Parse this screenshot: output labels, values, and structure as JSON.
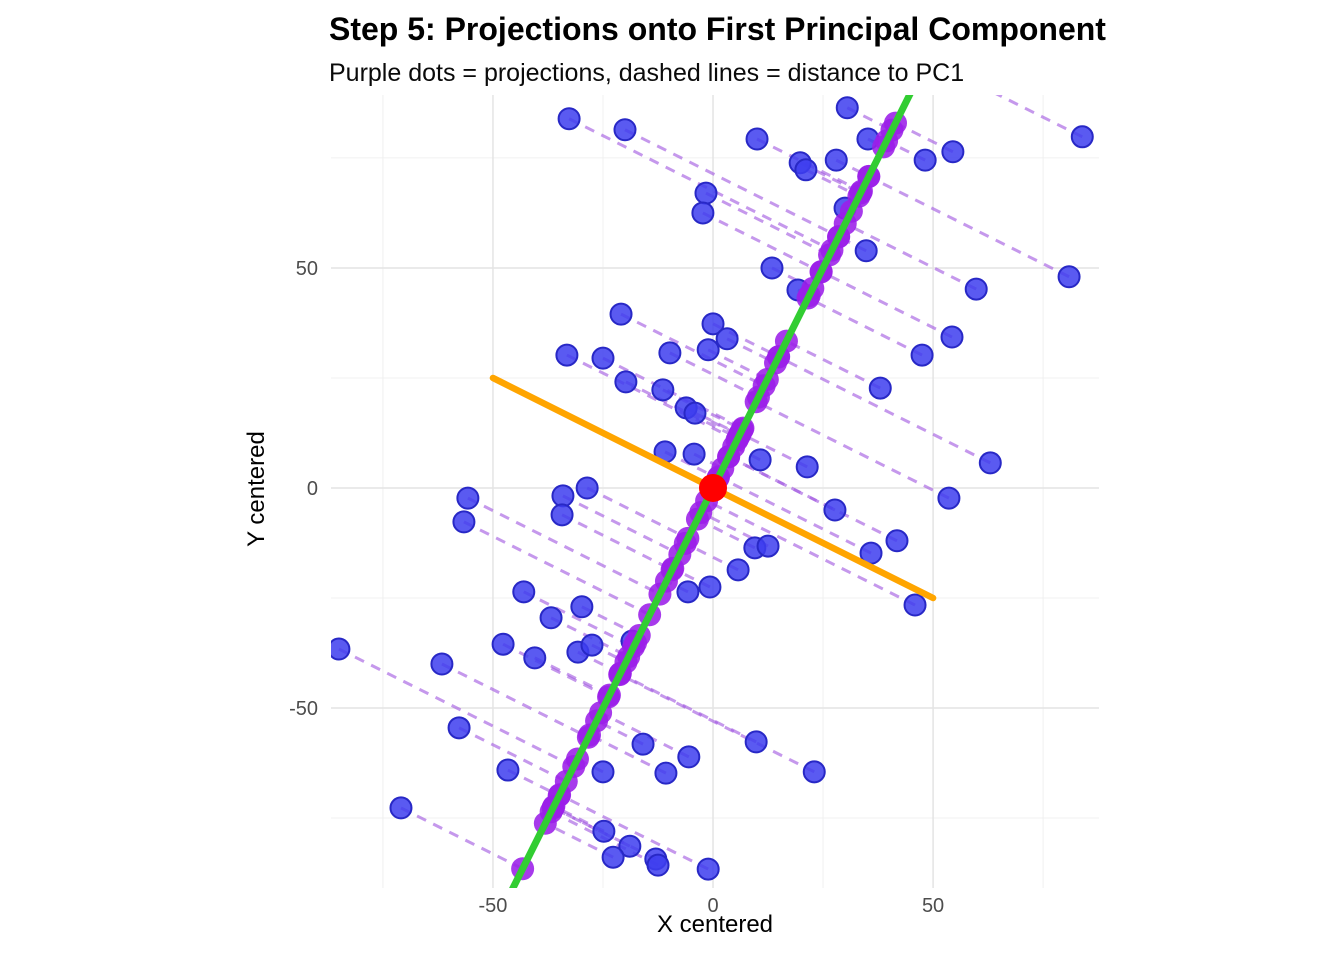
{
  "chart_data": {
    "type": "scatter",
    "title": "Step 5: Projections onto First Principal Component",
    "subtitle": "Purple dots = projections, dashed lines = distance to PC1",
    "xlabel": "X centered",
    "ylabel": "Y centered",
    "xlim": [
      -86.8,
      87.7
    ],
    "ylim": [
      -90.9,
      89.3
    ],
    "x_ticks": [
      -50,
      0,
      50
    ],
    "y_ticks": [
      -50,
      0,
      50
    ],
    "x_grid_minor": [
      -75,
      -25,
      25,
      75
    ],
    "y_grid_minor": [
      -75,
      -25,
      25,
      75
    ],
    "grid": "on",
    "legend_position": "none",
    "pc1_line": {
      "name": "PC1",
      "slope": 2.0,
      "intercept": 0,
      "t_range": [
        -105,
        105
      ]
    },
    "pc2_line": {
      "name": "PC2",
      "from": [
        -50,
        25
      ],
      "to": [
        50,
        -25
      ]
    },
    "center_point": {
      "x": 0,
      "y": 0
    },
    "projection_rule": "orthogonal projection of each point onto PC1: t=(x+2y)/5, proj=(t,2t)",
    "series": [
      {
        "name": "data-points",
        "points": [
          [
            -32.7,
            83.9
          ],
          [
            -20.0,
            81.4
          ],
          [
            -20.9,
            39.5
          ],
          [
            -33.2,
            30.2
          ],
          [
            -25.0,
            29.5
          ],
          [
            30.5,
            86.4
          ],
          [
            10.0,
            79.3
          ],
          [
            19.8,
            73.9
          ],
          [
            21.1,
            72.3
          ],
          [
            28.0,
            74.5
          ],
          [
            35.2,
            79.3
          ],
          [
            48.2,
            74.5
          ],
          [
            30.0,
            63.6
          ],
          [
            34.8,
            53.9
          ],
          [
            13.4,
            50.0
          ],
          [
            19.3,
            45.0
          ],
          [
            0.0,
            37.3
          ],
          [
            3.2,
            33.9
          ],
          [
            -1.1,
            31.4
          ],
          [
            -9.8,
            30.7
          ],
          [
            54.5,
            76.4
          ],
          [
            83.9,
            79.8
          ],
          [
            80.9,
            48.0
          ],
          [
            59.8,
            45.2
          ],
          [
            54.3,
            34.3
          ],
          [
            -19.8,
            24.1
          ],
          [
            -55.7,
            -2.3
          ],
          [
            -28.6,
            0.0
          ],
          [
            -34.1,
            -1.8
          ],
          [
            -34.3,
            -6.1
          ],
          [
            -56.6,
            -7.7
          ],
          [
            -43.0,
            -23.6
          ],
          [
            -29.8,
            -27.0
          ],
          [
            -36.8,
            -29.5
          ],
          [
            -11.4,
            22.3
          ],
          [
            -6.1,
            18.2
          ],
          [
            -4.1,
            17.0
          ],
          [
            -10.9,
            8.2
          ],
          [
            -4.3,
            7.7
          ],
          [
            10.7,
            6.4
          ],
          [
            21.4,
            4.8
          ],
          [
            27.7,
            -5.0
          ],
          [
            9.5,
            -13.6
          ],
          [
            12.5,
            -13.2
          ],
          [
            5.7,
            -18.6
          ],
          [
            -0.7,
            -22.5
          ],
          [
            -5.7,
            -23.6
          ],
          [
            35.9,
            -14.8
          ],
          [
            47.5,
            30.2
          ],
          [
            38.0,
            22.7
          ],
          [
            63.0,
            5.7
          ],
          [
            53.6,
            -2.3
          ],
          [
            41.8,
            -12.0
          ],
          [
            45.9,
            -26.6
          ],
          [
            -85.0,
            -36.6
          ],
          [
            -61.6,
            -40.0
          ],
          [
            -47.7,
            -35.5
          ],
          [
            -40.5,
            -38.6
          ],
          [
            -30.7,
            -37.3
          ],
          [
            -27.5,
            -35.7
          ],
          [
            -18.4,
            -34.8
          ],
          [
            -57.7,
            -54.5
          ],
          [
            -46.6,
            -64.1
          ],
          [
            -70.9,
            -72.7
          ],
          [
            -15.9,
            -58.2
          ],
          [
            -5.5,
            -61.1
          ],
          [
            -25.0,
            -64.5
          ],
          [
            -10.7,
            -64.8
          ],
          [
            9.8,
            -57.7
          ],
          [
            23.0,
            -64.5
          ],
          [
            -24.8,
            -78.0
          ],
          [
            -18.9,
            -81.4
          ],
          [
            -22.7,
            -83.9
          ],
          [
            -13.0,
            -84.3
          ],
          [
            -12.5,
            -85.7
          ],
          [
            -1.1,
            -86.6
          ],
          [
            -1.6,
            67.0
          ],
          [
            -2.3,
            62.5
          ]
        ]
      },
      {
        "name": "projection-points",
        "note": "positions computed from data-points via projection_rule"
      }
    ],
    "colors": {
      "point_fill": "#3D3DEF",
      "point_stroke": "#2828C6",
      "projection_fill": "#9B1FE8",
      "dash_stroke": "#A259E0",
      "pc1": "#32CD32",
      "pc2": "#FFA500",
      "center": "#FF0000",
      "grid_major": "#E4E4E4",
      "grid_minor": "#F0F0F0",
      "tick_text": "#4D4D4D",
      "title_text": "#000000"
    }
  }
}
